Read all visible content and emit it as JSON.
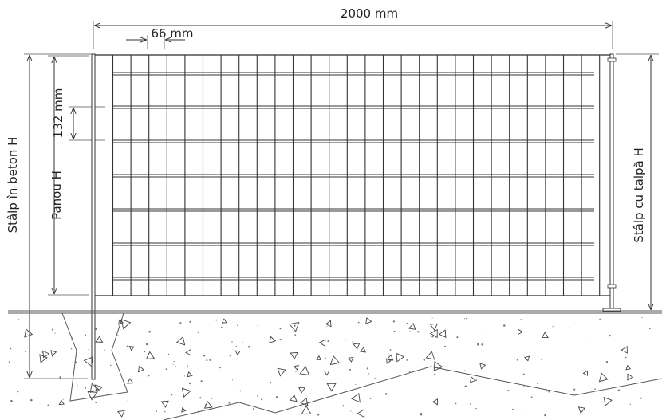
{
  "dimensions": {
    "overall_width": "2000  mm",
    "mesh_spacing_h": "66 mm",
    "mesh_spacing_v": "132 mm"
  },
  "labels": {
    "concrete_post": "Stâlp în beton H",
    "panel": "Panou H",
    "foot_post": "Stâlp cu talpă H"
  },
  "colors": {
    "line": "#333333",
    "background": "#ffffff"
  }
}
